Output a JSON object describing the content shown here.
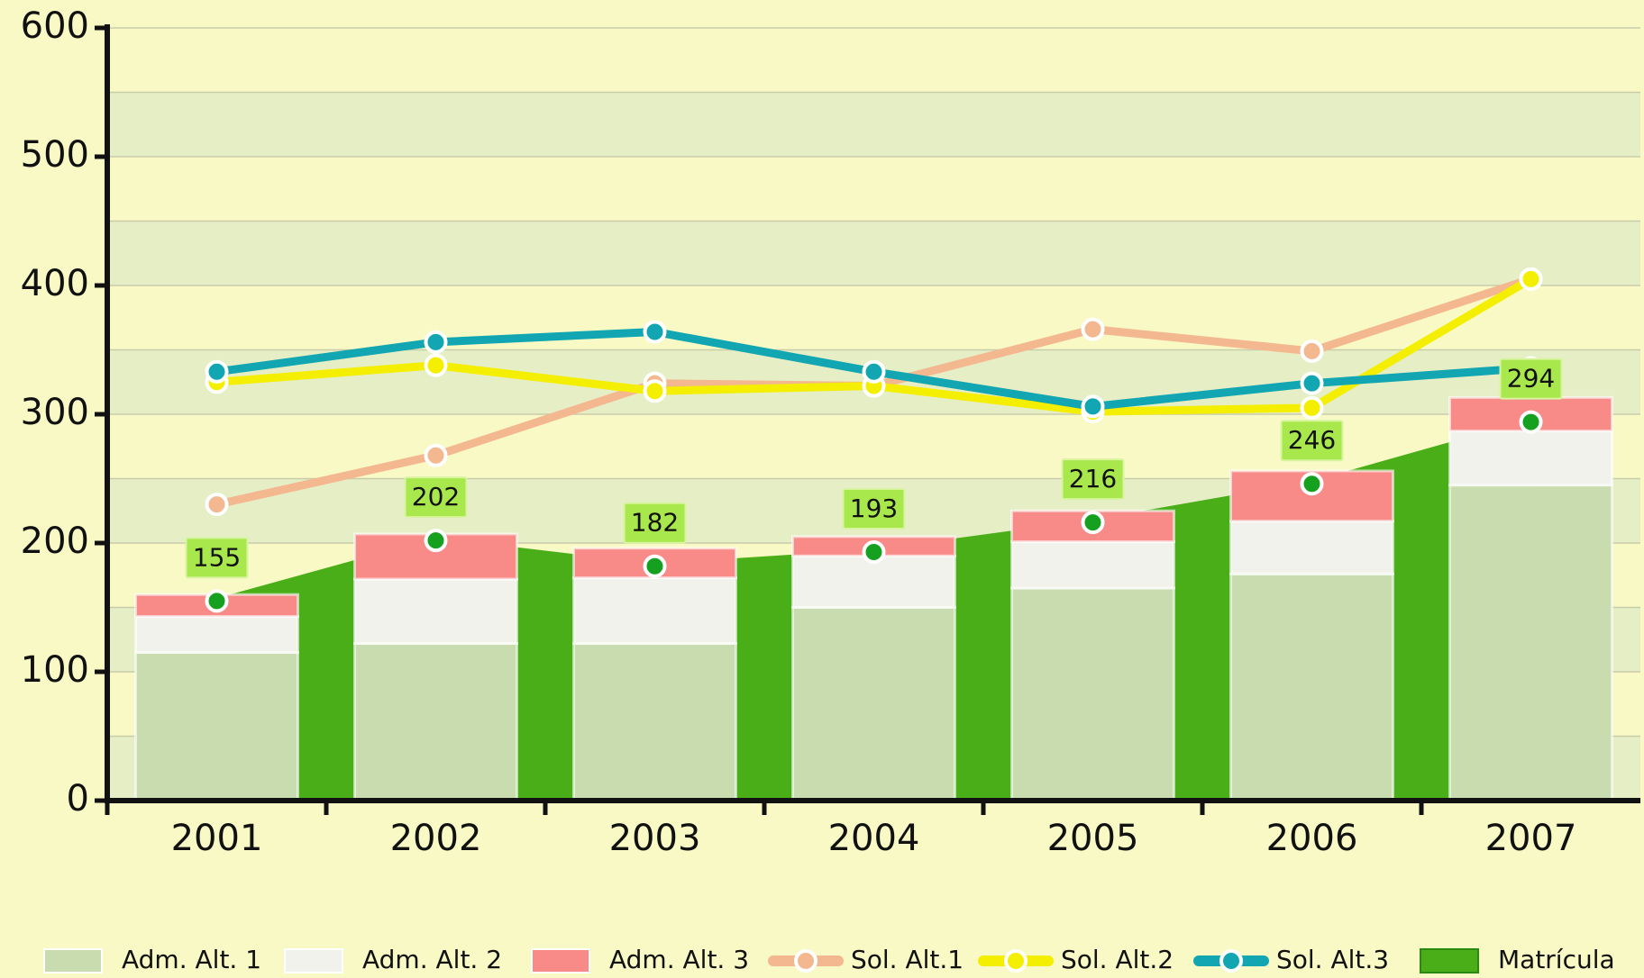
{
  "chart_data": {
    "type": "bar",
    "categories": [
      "2001",
      "2002",
      "2003",
      "2004",
      "2005",
      "2006",
      "2007"
    ],
    "ylim": [
      0,
      600
    ],
    "yticks": [
      0,
      100,
      200,
      300,
      400,
      500,
      600
    ],
    "grid": true,
    "stacked": true,
    "legend": "bottom",
    "series": [
      {
        "name": "Adm. Alt. 1",
        "type": "bar",
        "color": "#c8dcb0",
        "values": [
          115,
          122,
          122,
          150,
          165,
          176,
          245
        ]
      },
      {
        "name": "Adm. Alt. 2",
        "type": "bar",
        "color": "#f2f2ec",
        "values": [
          28,
          50,
          51,
          40,
          36,
          41,
          42
        ]
      },
      {
        "name": "Adm. Alt. 3",
        "type": "bar",
        "color": "#f88a88",
        "values": [
          17,
          35,
          23,
          15,
          24,
          39,
          26
        ]
      },
      {
        "name": "Sol. Alt.1",
        "type": "line",
        "color": "#f4b890",
        "values": [
          230,
          268,
          324,
          322,
          366,
          349,
          405
        ]
      },
      {
        "name": "Sol. Alt.2",
        "type": "line",
        "color": "#f4ee00",
        "values": [
          325,
          338,
          318,
          322,
          302,
          305,
          405
        ]
      },
      {
        "name": "Sol. Alt.3",
        "type": "line",
        "color": "#12a6b2",
        "values": [
          333,
          356,
          364,
          333,
          306,
          324,
          336
        ]
      },
      {
        "name": "Matrícula",
        "type": "area",
        "color": "#4aae18",
        "values": [
          155,
          202,
          182,
          193,
          216,
          246,
          294
        ]
      }
    ]
  }
}
